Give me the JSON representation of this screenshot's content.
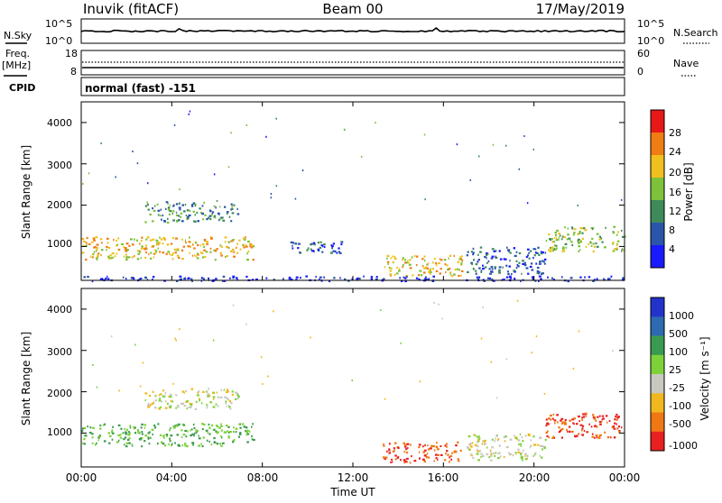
{
  "header": {
    "station": "Inuvik (fitACF)",
    "beam": "Beam 00",
    "date": "17/May/2019"
  },
  "noise_panel": {
    "left_label": "N.Sky",
    "left_ticks": [
      "10^5",
      "10^0"
    ],
    "right_label": "N.Search",
    "right_ticks": [
      "10^5",
      "10^0"
    ]
  },
  "freq_panel": {
    "left_label_1": "Freq.",
    "left_label_2": "[MHz]",
    "left_ticks": [
      "18",
      "8"
    ],
    "right_label": "Nave",
    "right_ticks": [
      "60",
      "0"
    ]
  },
  "cpid": {
    "label": "CPID",
    "text": "normal (fast) -151"
  },
  "x_axis": {
    "label": "Time UT",
    "ticks": [
      "00:00",
      "04:00",
      "08:00",
      "12:00",
      "16:00",
      "20:00",
      "00:00"
    ]
  },
  "power_panel": {
    "ylabel": "Slant Range [km]",
    "yticks": [
      "1000",
      "2000",
      "3000",
      "4000"
    ],
    "cbar_label": "Power [dB]",
    "cbar_ticks": [
      "4",
      "8",
      "12",
      "16",
      "20",
      "24",
      "28"
    ]
  },
  "velocity_panel": {
    "ylabel": "Slant Range [km]",
    "yticks": [
      "1000",
      "2000",
      "3000",
      "4000"
    ],
    "cbar_label": "Velocity [m s⁻¹]",
    "cbar_ticks": [
      "1000",
      "500",
      "100",
      "25",
      "-25",
      "-100",
      "-500",
      "-1000"
    ]
  },
  "chart_data": [
    {
      "type": "heatmap",
      "title": "Power",
      "xlabel": "Time UT",
      "ylabel": "Slant Range [km]",
      "x_range_hours": [
        0,
        24
      ],
      "y_range_km": [
        180,
        4500
      ],
      "colorbar": {
        "label": "Power [dB]",
        "range": [
          0,
          30
        ],
        "ticks": [
          4,
          8,
          12,
          16,
          20,
          24,
          28
        ],
        "colors": [
          "#1a1aff",
          "#2a55a8",
          "#3e8a5a",
          "#7dc23a",
          "#f0c01e",
          "#f07d14",
          "#e81818"
        ]
      },
      "regions": [
        {
          "t": [
            0.0,
            7.6
          ],
          "r": [
            700,
            1250
          ],
          "db": 20
        },
        {
          "t": [
            2.8,
            6.9
          ],
          "r": [
            1600,
            2100
          ],
          "db": 12
        },
        {
          "t": [
            9.0,
            11.5
          ],
          "r": [
            850,
            1150
          ],
          "db": 8
        },
        {
          "t": [
            13.3,
            16.8
          ],
          "r": [
            300,
            800
          ],
          "db": 20
        },
        {
          "t": [
            17.0,
            20.5
          ],
          "r": [
            350,
            1000
          ],
          "db": 8
        },
        {
          "t": [
            20.5,
            24.0
          ],
          "r": [
            900,
            1500
          ],
          "db": 16
        },
        {
          "t": [
            0.0,
            24.0
          ],
          "r": [
            180,
            300
          ],
          "db": 4
        }
      ]
    },
    {
      "type": "heatmap",
      "title": "Velocity",
      "xlabel": "Time UT",
      "ylabel": "Slant Range [km]",
      "x_range_hours": [
        0,
        24
      ],
      "y_range_km": [
        180,
        4500
      ],
      "colorbar": {
        "label": "Velocity [m s⁻¹]",
        "ticks": [
          1000,
          500,
          100,
          25,
          -25,
          -100,
          -500,
          -1000
        ],
        "colors": [
          "#2233cc",
          "#2d6ab0",
          "#3a9a50",
          "#7dd23a",
          "#c8c8c0",
          "#f0b81e",
          "#f07814",
          "#e82020"
        ]
      },
      "regions": [
        {
          "t": [
            0.0,
            7.6
          ],
          "r": [
            700,
            1250
          ],
          "v": 100
        },
        {
          "t": [
            2.8,
            6.9
          ],
          "r": [
            1600,
            2100
          ],
          "v": 0
        },
        {
          "t": [
            13.3,
            16.8
          ],
          "r": [
            300,
            800
          ],
          "v": -500
        },
        {
          "t": [
            17.0,
            20.5
          ],
          "r": [
            350,
            1000
          ],
          "v": 0
        },
        {
          "t": [
            20.5,
            24.0
          ],
          "r": [
            900,
            1500
          ],
          "v": -500
        }
      ]
    }
  ]
}
